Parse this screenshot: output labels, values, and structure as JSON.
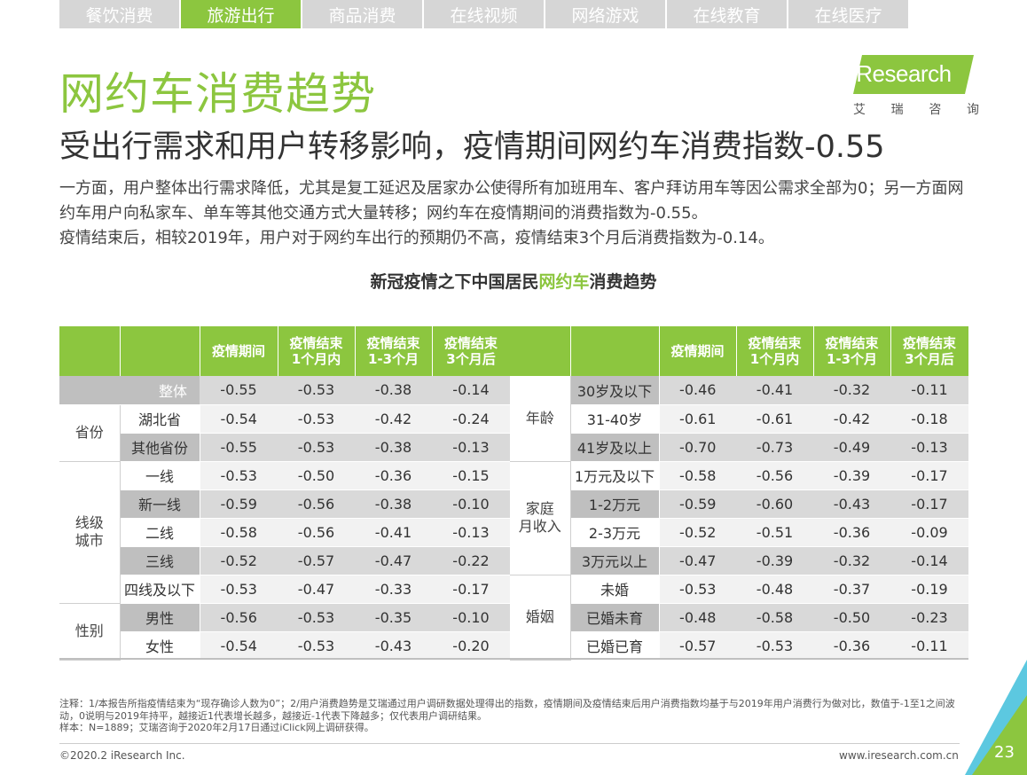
{
  "tabs": [
    {
      "label": "餐饮消费",
      "active": false
    },
    {
      "label": "旅游出行",
      "active": true
    },
    {
      "label": "商品消费",
      "active": false
    },
    {
      "label": "在线视频",
      "active": false
    },
    {
      "label": "网络游戏",
      "active": false
    },
    {
      "label": "在线教育",
      "active": false
    },
    {
      "label": "在线医疗",
      "active": false
    }
  ],
  "logo": {
    "text": "iResearch",
    "sub": [
      "艾",
      "瑞",
      "咨",
      "询"
    ]
  },
  "title": "网约车消费趋势",
  "subtitle": "受出行需求和用户转移影响，疫情期间网约车消费指数-0.55",
  "description": [
    "一方面，用户整体出行需求降低，尤其是复工延迟及居家办公使得所有加班用车、客户拜访用车等因公需求全部为0；另一方面网约车用户向私家车、单车等其他交通方式大量转移；网约车在疫情期间的消费指数为-0.55。",
    "疫情结束后，相较2019年，用户对于网约车出行的预期仍不高，疫情结束3个月后消费指数为-0.14。"
  ],
  "table_title": {
    "pre": "新冠疫情之下中国居民",
    "highlight": "网约车",
    "post": "消费趋势"
  },
  "columns": [
    "疫情期间",
    "疫情结束\n1个月内",
    "疫情结束\n1-3个月",
    "疫情结束\n3个月后"
  ],
  "left_table": {
    "total": {
      "label": "整体",
      "values": [
        "-0.55",
        "-0.53",
        "-0.38",
        "-0.14"
      ]
    },
    "groups": [
      {
        "name": "省份",
        "rows": [
          {
            "label": "湖北省",
            "values": [
              "-0.54",
              "-0.53",
              "-0.42",
              "-0.24"
            ]
          },
          {
            "label": "其他省份",
            "values": [
              "-0.55",
              "-0.53",
              "-0.38",
              "-0.13"
            ]
          }
        ]
      },
      {
        "name": "线级\n城市",
        "rows": [
          {
            "label": "一线",
            "values": [
              "-0.53",
              "-0.50",
              "-0.36",
              "-0.15"
            ]
          },
          {
            "label": "新一线",
            "values": [
              "-0.59",
              "-0.56",
              "-0.38",
              "-0.10"
            ]
          },
          {
            "label": "二线",
            "values": [
              "-0.58",
              "-0.56",
              "-0.41",
              "-0.13"
            ]
          },
          {
            "label": "三线",
            "values": [
              "-0.52",
              "-0.57",
              "-0.47",
              "-0.22"
            ]
          },
          {
            "label": "四线及以下",
            "values": [
              "-0.53",
              "-0.47",
              "-0.33",
              "-0.17"
            ]
          }
        ]
      },
      {
        "name": "性别",
        "rows": [
          {
            "label": "男性",
            "values": [
              "-0.56",
              "-0.53",
              "-0.35",
              "-0.10"
            ]
          },
          {
            "label": "女性",
            "values": [
              "-0.54",
              "-0.53",
              "-0.43",
              "-0.20"
            ]
          }
        ]
      }
    ]
  },
  "right_table": {
    "groups": [
      {
        "name": "年龄",
        "rows": [
          {
            "label": "30岁及以下",
            "values": [
              "-0.46",
              "-0.41",
              "-0.32",
              "-0.11"
            ]
          },
          {
            "label": "31-40岁",
            "values": [
              "-0.61",
              "-0.61",
              "-0.42",
              "-0.18"
            ]
          },
          {
            "label": "41岁及以上",
            "values": [
              "-0.70",
              "-0.73",
              "-0.49",
              "-0.13"
            ]
          }
        ]
      },
      {
        "name": "家庭\n月收入",
        "rows": [
          {
            "label": "1万元及以下",
            "values": [
              "-0.58",
              "-0.56",
              "-0.39",
              "-0.17"
            ]
          },
          {
            "label": "1-2万元",
            "values": [
              "-0.59",
              "-0.60",
              "-0.43",
              "-0.17"
            ]
          },
          {
            "label": "2-3万元",
            "values": [
              "-0.52",
              "-0.51",
              "-0.36",
              "-0.09"
            ]
          },
          {
            "label": "3万元以上",
            "values": [
              "-0.47",
              "-0.39",
              "-0.32",
              "-0.14"
            ]
          }
        ]
      },
      {
        "name": "婚姻",
        "rows": [
          {
            "label": "未婚",
            "values": [
              "-0.53",
              "-0.48",
              "-0.37",
              "-0.19"
            ]
          },
          {
            "label": "已婚未育",
            "values": [
              "-0.48",
              "-0.58",
              "-0.50",
              "-0.23"
            ]
          },
          {
            "label": "已婚已育",
            "values": [
              "-0.57",
              "-0.53",
              "-0.36",
              "-0.11"
            ]
          }
        ]
      }
    ]
  },
  "notes": [
    "注释：1/本报告所指疫情结束为“现存确诊人数为0”；2/用户消费趋势是艾瑞通过用户调研数据处理得出的指数，疫情期间及疫情结束后用户消费指数均基于与2019年用户消费行为做对比，数值于-1至1之间波动，0说明与2019年持平，越接近1代表增长越多，越接近-1代表下降越多；仅代表用户调研结果。",
    "样本：N=1889；艾瑞咨询于2020年2月17日通过iClick网上调研获得。"
  ],
  "footer": {
    "copyright": "©2020.2 iResearch Inc.",
    "site": "www.iresearch.com.cn",
    "page": "23"
  },
  "colors": {
    "accent": "#8cc63f",
    "band_dark": "#d9d9d9",
    "band_light": "#f2f2f2",
    "label_dark": "#bfbfbf"
  }
}
